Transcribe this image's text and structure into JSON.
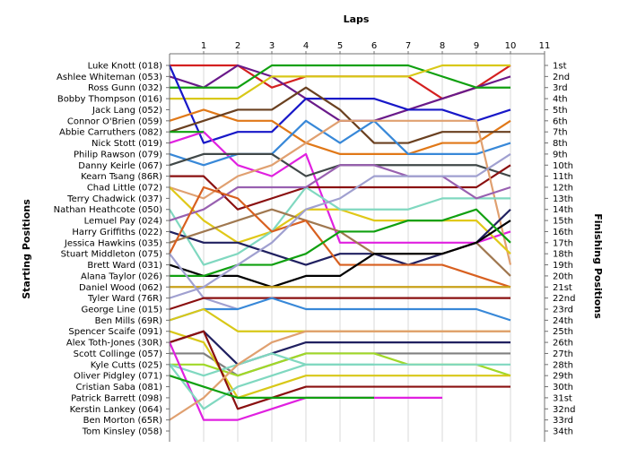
{
  "chart_data": {
    "type": "line",
    "title": "Laps",
    "ylabel_left": "Starting Positions",
    "ylabel_right": "Finishing Positions",
    "x_ticks": [
      "1",
      "2",
      "3",
      "4",
      "5",
      "6",
      "7",
      "8",
      "9",
      "10",
      "11"
    ],
    "x_range": [
      0,
      11
    ],
    "y_range": [
      1,
      34
    ],
    "y_inverted": true,
    "grid": "vertical",
    "start_labels": [
      "Luke Knott (018)",
      "Ashlee Whiteman (053)",
      "Ross Gunn (032)",
      "Bobby Thompson (016)",
      "Jack Lang (052)",
      "Connor O'Brien (059)",
      "Abbie Carruthers (082)",
      "Nick Stott (019)",
      "Philip Rawson (079)",
      "Danny Keirle (067)",
      "Kearn Tsang (86R)",
      "Chad Little (072)",
      "Terry Chadwick (037)",
      "Nathan Heathcote (050)",
      "Lemuel Pay (024)",
      "Harry Griffiths (022)",
      "Jessica Hawkins (035)",
      "Stuart Middleton (075)",
      "Brett Ward (031)",
      "Alana Taylor (026)",
      "Daniel Wood (062)",
      "Tyler Ward (76R)",
      "George Line (015)",
      "Ben Mills (69R)",
      "Spencer Scaife (091)",
      "Alex Toth-Jones (30R)",
      "Scott Collinge (057)",
      "Kyle Cutts (025)",
      "Oliver Pidgley (071)",
      "Cristian Saba (081)",
      "Patrick Barrett (098)",
      "Kerstin Lankey (064)",
      "Ben Morton (65R)",
      "Tom Kinsley (058)"
    ],
    "finish_labels": [
      "1st",
      "2nd",
      "3rd",
      "4th",
      "5th",
      "6th",
      "7th",
      "8th",
      "9th",
      "10th",
      "11th",
      "12th",
      "13th",
      "14th",
      "15th",
      "16th",
      "17th",
      "18th",
      "19th",
      "20th",
      "21st",
      "22nd",
      "23rd",
      "24th",
      "25th",
      "26th",
      "27th",
      "28th",
      "29th",
      "30th",
      "31st",
      "32nd",
      "33rd",
      "34th"
    ],
    "series": [
      {
        "color": "#d42020",
        "values": [
          1,
          1,
          1,
          3,
          2,
          2,
          2,
          2,
          4,
          3,
          1
        ]
      },
      {
        "color": "#6a1a8a",
        "values": [
          2,
          3,
          1,
          2,
          4,
          6,
          6,
          5,
          4,
          3,
          2
        ]
      },
      {
        "color": "#10a010",
        "values": [
          3,
          3,
          3,
          1,
          1,
          1,
          1,
          1,
          2,
          3,
          3
        ]
      },
      {
        "color": "#d8c818",
        "values": [
          4,
          4,
          4,
          2,
          2,
          2,
          2,
          2,
          1,
          1,
          1
        ]
      },
      {
        "color": "#1818c8",
        "values": [
          1,
          8,
          7,
          7,
          4,
          4,
          4,
          5,
          5,
          6,
          5
        ]
      },
      {
        "color": "#e07818",
        "values": [
          6,
          5,
          6,
          6,
          8,
          9,
          9,
          9,
          8,
          8,
          6
        ]
      },
      {
        "color": "#6a4020",
        "values": [
          7,
          6,
          5,
          5,
          3,
          5,
          8,
          8,
          7,
          7,
          7
        ]
      },
      {
        "color": "#e020e0",
        "values": [
          8,
          7,
          10,
          11,
          9,
          17,
          17,
          17,
          17,
          17,
          16
        ]
      },
      {
        "color": "#3888d8",
        "values": [
          9,
          10,
          9,
          9,
          6,
          8,
          6,
          9,
          9,
          9,
          8
        ]
      },
      {
        "color": "#404848",
        "values": [
          10,
          9,
          9,
          9,
          11,
          10,
          10,
          10,
          10,
          10,
          11
        ]
      },
      {
        "color": "#8a1010",
        "values": [
          11,
          11,
          14,
          13,
          12,
          12,
          12,
          12,
          12,
          12,
          10
        ]
      },
      {
        "color": "#e0a070",
        "values": [
          12,
          13,
          11,
          10,
          8,
          6,
          6,
          6,
          6,
          6,
          19
        ]
      },
      {
        "color": "#e0c818",
        "values": [
          12,
          15,
          17,
          16,
          14,
          14,
          15,
          15,
          15,
          15,
          18
        ]
      },
      {
        "color": "#80d8c0",
        "values": [
          14,
          19,
          18,
          16,
          12,
          14,
          14,
          14,
          13,
          13,
          13
        ]
      },
      {
        "color": "#9860b0",
        "values": [
          15,
          14,
          12,
          12,
          12,
          10,
          10,
          11,
          11,
          13,
          12
        ]
      },
      {
        "color": "#202060",
        "values": [
          16,
          17,
          17,
          18,
          19,
          18,
          18,
          19,
          18,
          17,
          14
        ]
      },
      {
        "color": "#a07850",
        "values": [
          17,
          16,
          15,
          14,
          15,
          16,
          18,
          18,
          18,
          17,
          20
        ]
      },
      {
        "color": "#d86020",
        "values": [
          18,
          12,
          13,
          16,
          15,
          19,
          19,
          19,
          19,
          20,
          21
        ]
      },
      {
        "color": "#000000",
        "values": [
          19,
          20,
          20,
          21,
          20,
          20,
          18,
          18,
          18,
          17,
          15
        ]
      },
      {
        "color": "#10a010",
        "values": [
          20,
          20,
          19,
          19,
          18,
          16,
          16,
          15,
          15,
          14,
          17
        ]
      },
      {
        "color": "#c8a018",
        "values": [
          21,
          21,
          21,
          21,
          21,
          21,
          21,
          21,
          21,
          21,
          21
        ]
      },
      {
        "color": "#a0a0d0",
        "values": [
          22,
          21,
          19,
          17,
          14,
          13,
          11,
          11,
          11,
          11,
          9
        ]
      },
      {
        "color": "#a0a0d0",
        "values": [
          18,
          22,
          23
        ]
      },
      {
        "color": "#8a1010",
        "values": [
          23,
          22,
          22,
          22,
          22,
          22,
          22,
          22,
          22,
          22,
          22
        ]
      },
      {
        "color": "#3888d8",
        "values": [
          24,
          23,
          23,
          22,
          23,
          23,
          23,
          23,
          23,
          23,
          24
        ]
      },
      {
        "color": "#d8c818",
        "values": [
          24,
          23,
          25,
          25,
          25,
          25,
          25,
          25,
          25,
          25,
          25
        ]
      },
      {
        "color": "#202060",
        "values": [
          26,
          25,
          28,
          27,
          26,
          26,
          26,
          26,
          26,
          26,
          26
        ]
      },
      {
        "color": "#808080",
        "values": [
          27,
          27,
          29,
          28,
          27,
          27,
          27,
          27,
          27,
          27,
          27
        ]
      },
      {
        "color": "#a0d828",
        "values": [
          28,
          28,
          29,
          28,
          27,
          27,
          27,
          28,
          28,
          28,
          29
        ]
      },
      {
        "color": "#80d8c0",
        "values": [
          28,
          29,
          28,
          27,
          28,
          28,
          28,
          28,
          28,
          28,
          28
        ]
      },
      {
        "color": "#d8c818",
        "values": [
          25,
          26,
          31,
          30,
          29,
          29,
          29,
          29,
          29,
          29,
          29
        ]
      },
      {
        "color": "#8a1010",
        "values": [
          26,
          25,
          32,
          31,
          30,
          30,
          30,
          30,
          30,
          30,
          30
        ]
      },
      {
        "color": "#e020e0",
        "values": [
          26,
          33,
          33,
          32,
          31,
          31,
          31,
          31,
          31
        ]
      },
      {
        "color": "#80d8c0",
        "values": [
          28,
          32,
          30,
          29,
          28,
          28,
          28
        ]
      },
      {
        "color": "#e0a070",
        "values": [
          33,
          31,
          28,
          26,
          25,
          25,
          25,
          25,
          25,
          25,
          25
        ]
      },
      {
        "color": "#10a010",
        "values": [
          29,
          30,
          31,
          31,
          31,
          31,
          31
        ]
      },
      {
        "color": "#10a010",
        "values": [
          7,
          7
        ]
      }
    ]
  }
}
